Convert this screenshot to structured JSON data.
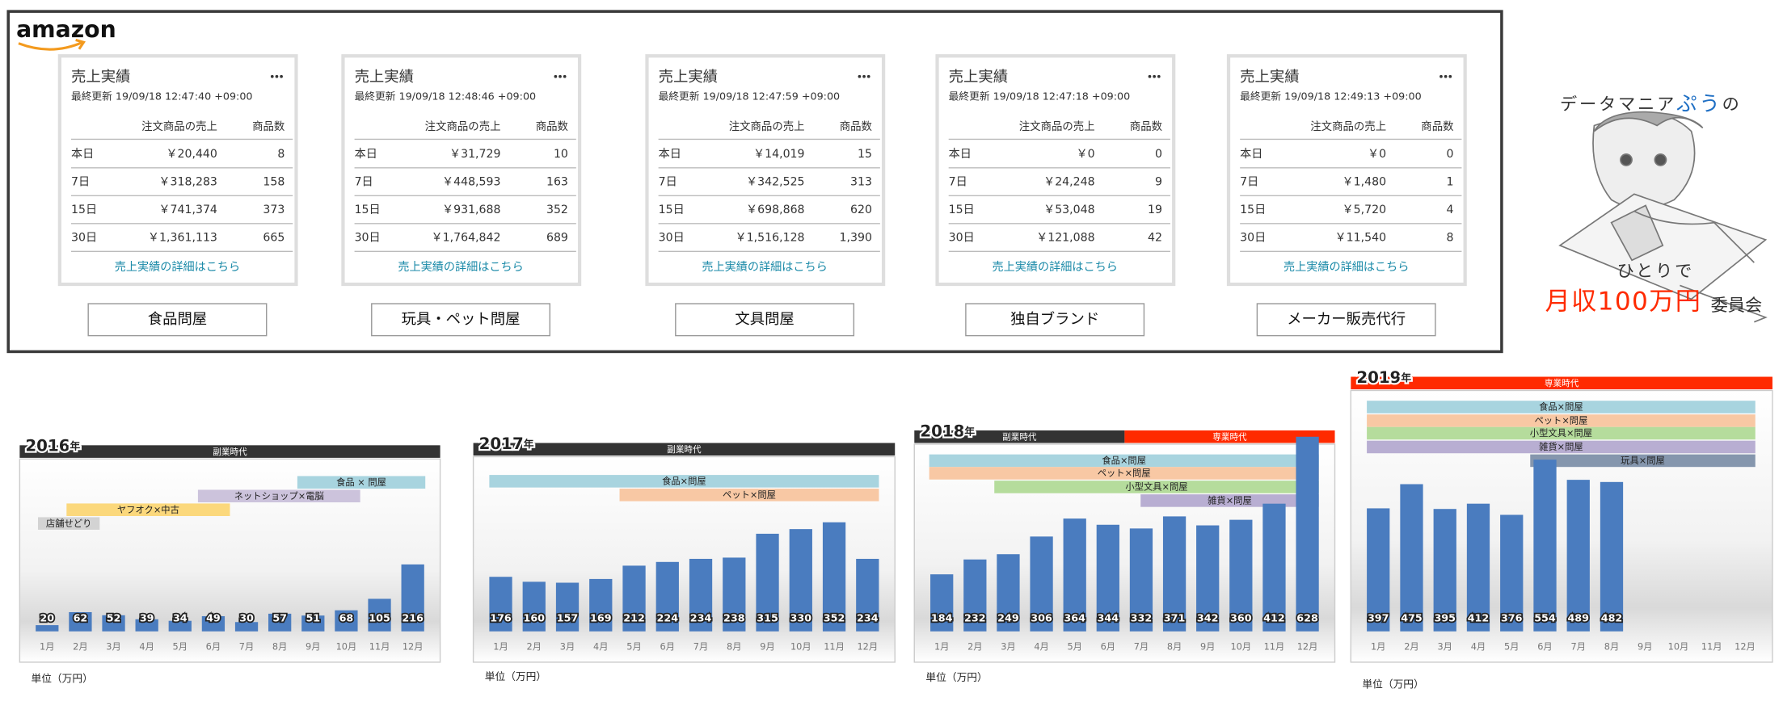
{
  "brand": "amazon",
  "stores": [
    {
      "title": "売上実績",
      "updated": "最終更新 19/09/18 12:47:40 +09:00",
      "columns": [
        "注文商品の売上",
        "商品数"
      ],
      "rows": [
        {
          "period": "本日",
          "sales": "￥20,440",
          "count": "8"
        },
        {
          "period": "7日",
          "sales": "￥318,283",
          "count": "158"
        },
        {
          "period": "15日",
          "sales": "￥741,374",
          "count": "373"
        },
        {
          "period": "30日",
          "sales": "￥1,361,113",
          "count": "665"
        }
      ],
      "link": "売上実績の詳細はこちら",
      "button": "食品問屋"
    },
    {
      "title": "売上実績",
      "updated": "最終更新 19/09/18 12:48:46 +09:00",
      "columns": [
        "注文商品の売上",
        "商品数"
      ],
      "rows": [
        {
          "period": "本日",
          "sales": "￥31,729",
          "count": "10"
        },
        {
          "period": "7日",
          "sales": "￥448,593",
          "count": "163"
        },
        {
          "period": "15日",
          "sales": "￥931,688",
          "count": "352"
        },
        {
          "period": "30日",
          "sales": "￥1,764,842",
          "count": "689"
        }
      ],
      "link": "売上実績の詳細はこちら",
      "button": "玩具・ペット問屋"
    },
    {
      "title": "売上実績",
      "updated": "最終更新 19/09/18 12:47:59 +09:00",
      "columns": [
        "注文商品の売上",
        "商品数"
      ],
      "rows": [
        {
          "period": "本日",
          "sales": "￥14,019",
          "count": "15"
        },
        {
          "period": "7日",
          "sales": "￥342,525",
          "count": "313"
        },
        {
          "period": "15日",
          "sales": "￥698,868",
          "count": "620"
        },
        {
          "period": "30日",
          "sales": "￥1,516,128",
          "count": "1,390"
        }
      ],
      "link": "売上実績の詳細はこちら",
      "button": "文具問屋"
    },
    {
      "title": "売上実績",
      "updated": "最終更新 19/09/18 12:47:18 +09:00",
      "columns": [
        "注文商品の売上",
        "商品数"
      ],
      "rows": [
        {
          "period": "本日",
          "sales": "￥0",
          "count": "0"
        },
        {
          "period": "7日",
          "sales": "￥24,248",
          "count": "9"
        },
        {
          "period": "15日",
          "sales": "￥53,048",
          "count": "19"
        },
        {
          "period": "30日",
          "sales": "￥121,088",
          "count": "42"
        }
      ],
      "link": "売上実績の詳細はこちら",
      "button": "独自ブランド"
    },
    {
      "title": "売上実績",
      "updated": "最終更新 19/09/18 12:49:13 +09:00",
      "columns": [
        "注文商品の売上",
        "商品数"
      ],
      "rows": [
        {
          "period": "本日",
          "sales": "￥0",
          "count": "0"
        },
        {
          "period": "7日",
          "sales": "￥1,480",
          "count": "1"
        },
        {
          "period": "15日",
          "sales": "￥5,720",
          "count": "4"
        },
        {
          "period": "30日",
          "sales": "￥11,540",
          "count": "8"
        }
      ],
      "link": "売上実績の詳細はこちら",
      "button": "メーカー販売代行"
    }
  ],
  "logo": {
    "parts": [
      "データマニア",
      "ぷう",
      "の"
    ],
    "line2": "ひとりで",
    "highlight": "月収100万円",
    "suffix": "委員会"
  },
  "chart_data": [
    {
      "type": "bar",
      "title": "2016",
      "title_suffix": "年",
      "periods": [
        {
          "label": "副業時代",
          "color": "#333333"
        }
      ],
      "annotations": [
        {
          "text": "食品 × 問屋",
          "color": "#a8d4df"
        },
        {
          "text": "ネットショップ×電脳",
          "color": "#ccc3dc"
        },
        {
          "text": "ヤフオク×中古",
          "color": "#fbd87c"
        },
        {
          "text": "店舗せどり",
          "color": "#d3d3d3"
        }
      ],
      "categories": [
        "1月",
        "2月",
        "3月",
        "4月",
        "5月",
        "6月",
        "7月",
        "8月",
        "9月",
        "10月",
        "11月",
        "12月"
      ],
      "values": [
        20,
        62,
        52,
        39,
        34,
        49,
        30,
        57,
        51,
        68,
        105,
        216
      ],
      "color": "#4a7cbf",
      "ylim": [
        0,
        700
      ],
      "unit_label": "単位（万円）"
    },
    {
      "type": "bar",
      "title": "2017",
      "title_suffix": "年",
      "periods": [
        {
          "label": "副業時代",
          "color": "#333333"
        }
      ],
      "annotations": [
        {
          "text": "食品×問屋",
          "color": "#a8d4df"
        },
        {
          "text": "ペット×問屋",
          "color": "#f8c8a4"
        }
      ],
      "categories": [
        "1月",
        "2月",
        "3月",
        "4月",
        "5月",
        "6月",
        "7月",
        "8月",
        "9月",
        "10月",
        "11月",
        "12月"
      ],
      "values": [
        176,
        160,
        157,
        169,
        212,
        224,
        234,
        238,
        315,
        330,
        352,
        234
      ],
      "color": "#4a7cbf",
      "ylim": [
        0,
        700
      ],
      "unit_label": "単位（万円）"
    },
    {
      "type": "bar",
      "title": "2018",
      "title_suffix": "年",
      "periods": [
        {
          "label": "副業時代",
          "color": "#333333"
        },
        {
          "label": "専業時代",
          "color": "#ff2a00"
        }
      ],
      "annotations": [
        {
          "text": "食品×問屋",
          "color": "#a8d4df"
        },
        {
          "text": "ペット×問屋",
          "color": "#f8c8a4"
        },
        {
          "text": "小型文具×問屋",
          "color": "#b5dc9c"
        },
        {
          "text": "雑貨×問屋",
          "color": "#b8aed2"
        }
      ],
      "categories": [
        "1月",
        "2月",
        "3月",
        "4月",
        "5月",
        "6月",
        "7月",
        "8月",
        "9月",
        "10月",
        "11月",
        "12月"
      ],
      "values": [
        184,
        232,
        249,
        306,
        364,
        344,
        332,
        371,
        342,
        360,
        412,
        628
      ],
      "color": "#4a7cbf",
      "ylim": [
        0,
        700
      ],
      "unit_label": "単位（万円）"
    },
    {
      "type": "bar",
      "title": "2019",
      "title_suffix": "年",
      "periods": [
        {
          "label": "専業時代",
          "color": "#ff2a00"
        }
      ],
      "annotations": [
        {
          "text": "食品×問屋",
          "color": "#a8d4df"
        },
        {
          "text": "ペット×問屋",
          "color": "#f8c8a4"
        },
        {
          "text": "小型文具×問屋",
          "color": "#b5dc9c"
        },
        {
          "text": "雑貨×問屋",
          "color": "#b8aed2"
        },
        {
          "text": "玩具×問屋",
          "color": "#8596ad"
        }
      ],
      "categories": [
        "1月",
        "2月",
        "3月",
        "4月",
        "5月",
        "6月",
        "7月",
        "8月",
        "9月",
        "10月",
        "11月",
        "12月"
      ],
      "values": [
        397,
        475,
        395,
        412,
        376,
        554,
        489,
        482,
        null,
        null,
        null,
        null
      ],
      "color": "#4a7cbf",
      "ylim": [
        0,
        700
      ],
      "unit_label": "単位（万円）"
    }
  ]
}
